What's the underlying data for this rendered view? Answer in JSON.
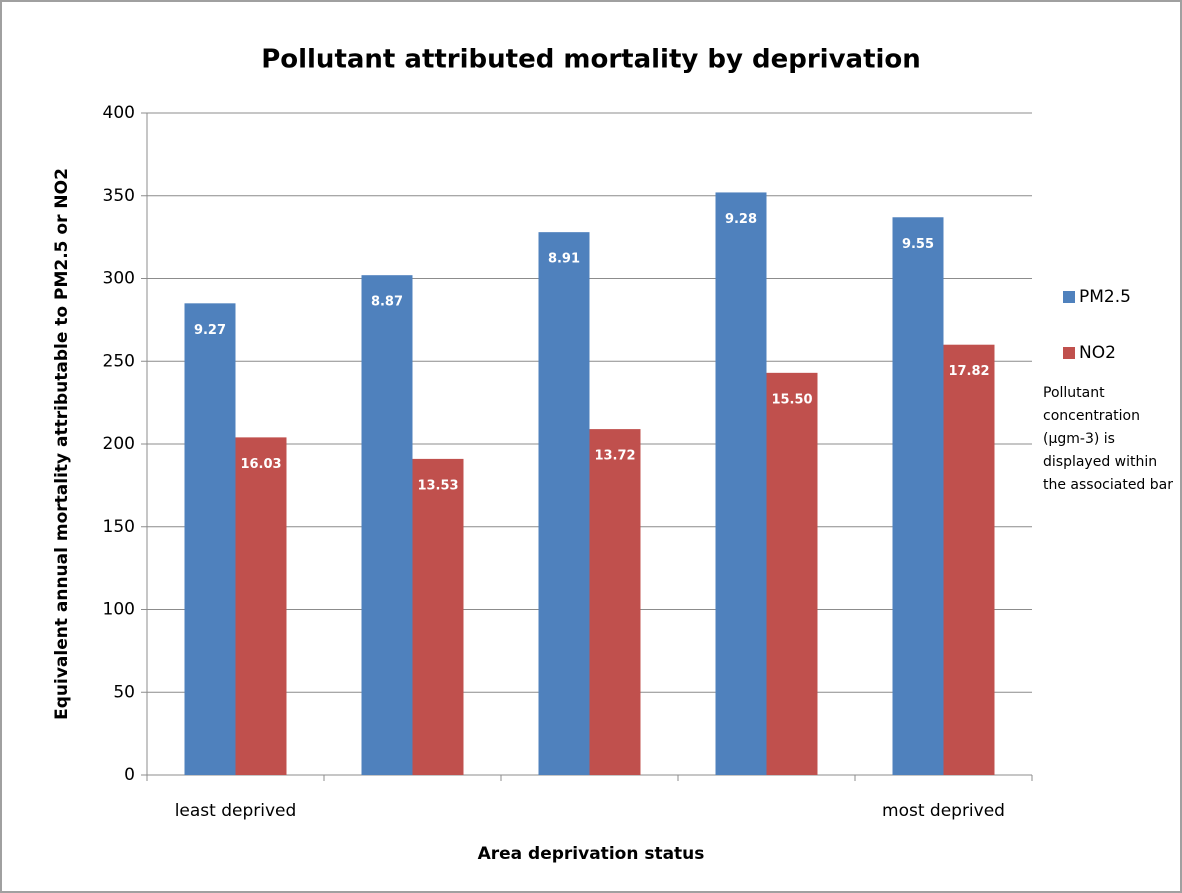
{
  "chart_data": {
    "type": "bar",
    "title": "Pollutant attributed mortality by deprivation",
    "x_label": "Area  deprivation status",
    "y_label": "Equivalent annual mortality attributable to PM2.5 or NO2",
    "annotation": "Pollutant concentration (µgm-3) is displayed within the associated bar",
    "categories": [
      "least deprived",
      null,
      null,
      null,
      "most deprived"
    ],
    "series": [
      {
        "name": "PM2.5",
        "color": "#4f81bd",
        "values": [
          285,
          302,
          328,
          352,
          337
        ],
        "concentrations": [
          9.27,
          8.87,
          8.91,
          9.28,
          9.55
        ]
      },
      {
        "name": "NO2",
        "color": "#c0504d",
        "values": [
          204,
          191,
          209,
          243,
          260
        ],
        "concentrations": [
          16.03,
          13.53,
          13.72,
          15.5,
          17.82
        ]
      }
    ],
    "concentration_labels": [
      [
        "9.27",
        "8.87",
        "8.91",
        "9.28",
        "9.55"
      ],
      [
        "16.03",
        "13.53",
        "13.72",
        "15.50",
        "17.82"
      ]
    ],
    "ylim": [
      0,
      400
    ],
    "yticks": [
      0,
      50,
      100,
      150,
      200,
      250,
      300,
      350,
      400
    ],
    "grid": true,
    "legend": "right"
  }
}
